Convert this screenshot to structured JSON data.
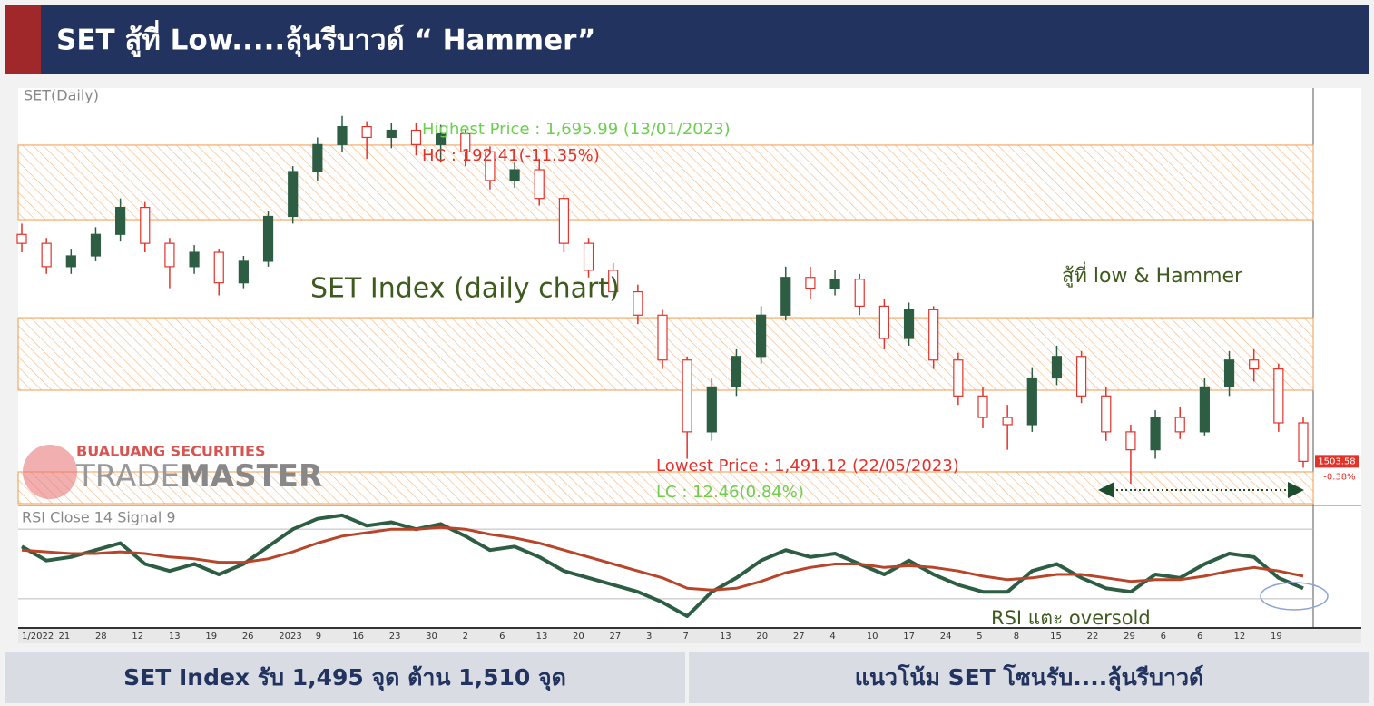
{
  "header": {
    "title": "SET สู้ที่ Low.....ลุ้นรีบาวด์ “ Hammer”"
  },
  "chart_data": {
    "type": "candlestick",
    "title": "SET(Daily)",
    "open": [
      1630,
      1625,
      1612,
      1618,
      1630,
      1645,
      1625,
      1612,
      1620,
      1603,
      1615,
      1640,
      1665,
      1680,
      1690,
      1684,
      1688,
      1680,
      1686,
      1676,
      1660,
      1666,
      1650,
      1625,
      1610,
      1598,
      1585,
      1560,
      1520,
      1545,
      1562,
      1585,
      1606,
      1600,
      1605,
      1590,
      1572,
      1588,
      1560,
      1540,
      1528,
      1524,
      1550,
      1562,
      1540,
      1520,
      1510,
      1528,
      1520,
      1545,
      1560,
      1555,
      1525
    ],
    "high": [
      1636,
      1628,
      1622,
      1634,
      1650,
      1648,
      1628,
      1624,
      1622,
      1618,
      1643,
      1668,
      1684,
      1695.99,
      1693,
      1692,
      1692,
      1691,
      1688,
      1679,
      1670,
      1672,
      1652,
      1628,
      1614,
      1602,
      1588,
      1562,
      1550,
      1566,
      1590,
      1612,
      1612,
      1610,
      1608,
      1594,
      1592,
      1590,
      1564,
      1545,
      1535,
      1556,
      1568,
      1565,
      1545,
      1524,
      1532,
      1534,
      1550,
      1565,
      1566,
      1558,
      1528
    ],
    "low": [
      1620,
      1608,
      1608,
      1615,
      1626,
      1620,
      1600,
      1608,
      1596,
      1600,
      1612,
      1636,
      1660,
      1676,
      1672,
      1678,
      1674,
      1670,
      1668,
      1655,
      1656,
      1646,
      1620,
      1606,
      1594,
      1580,
      1555,
      1505,
      1515,
      1540,
      1558,
      1582,
      1594,
      1596,
      1585,
      1566,
      1568,
      1555,
      1535,
      1522,
      1510,
      1520,
      1546,
      1536,
      1515,
      1491.12,
      1505,
      1516,
      1518,
      1540,
      1548,
      1520,
      1500
    ],
    "close": [
      1625,
      1612,
      1618,
      1630,
      1645,
      1625,
      1612,
      1620,
      1603,
      1615,
      1640,
      1665,
      1680,
      1690,
      1684,
      1688,
      1680,
      1686,
      1676,
      1660,
      1666,
      1650,
      1625,
      1610,
      1598,
      1585,
      1560,
      1520,
      1545,
      1562,
      1585,
      1606,
      1600,
      1605,
      1590,
      1572,
      1588,
      1560,
      1540,
      1528,
      1524,
      1550,
      1562,
      1540,
      1520,
      1510,
      1528,
      1520,
      1545,
      1560,
      1555,
      1525,
      1503.58
    ],
    "up_color": "#2d5e44",
    "down_color": "#e2332b",
    "ylim": [
      1480,
      1710
    ],
    "zones": [
      [
        1638.2,
        1679.7
      ],
      [
        1543.2,
        1583.6
      ],
      [
        1480,
        1497.7
      ]
    ],
    "zone_color": "#f29a4a",
    "change": "-0.38%",
    "x_labels": [
      "1/2022",
      "21",
      "28",
      "12",
      "13",
      "19",
      "26",
      "2023",
      "9",
      "16",
      "23",
      "30",
      "2",
      "6",
      "13",
      "20",
      "27",
      "3",
      "7",
      "13",
      "20",
      "27",
      "4",
      "10",
      "17",
      "24",
      "5",
      "8",
      "15",
      "22",
      "29",
      "6",
      "6",
      "12",
      "19"
    ],
    "annotations": {
      "highest": "Highest Price : 1,695.99 (13/01/2023)",
      "hc": "HC : 192.41(-11.35%)",
      "label": "SET Index (daily chart)",
      "note": "สู้ที่ low & Hammer",
      "lowest": "Lowest Price : 1,491.12 (22/05/2023)",
      "lc": "LC : 12.46(0.84%)"
    }
  },
  "rsi": {
    "type": "line",
    "title": "RSI Close 14 Signal 9",
    "ylim": [
      20,
      80
    ],
    "yticks": [
      30,
      50,
      70
    ],
    "series": [
      {
        "color": "#2d5e44",
        "values": [
          60,
          52,
          54,
          58,
          62,
          50,
          46,
          50,
          44,
          50,
          60,
          70,
          76,
          78,
          72,
          74,
          70,
          73,
          66,
          58,
          60,
          54,
          46,
          42,
          38,
          34,
          28,
          20,
          34,
          42,
          52,
          58,
          54,
          56,
          50,
          44,
          52,
          44,
          38,
          34,
          34,
          46,
          50,
          42,
          36,
          34,
          44,
          42,
          50,
          56,
          54,
          42,
          36
        ]
      },
      {
        "color": "#b8452a",
        "values": [
          58,
          57,
          56,
          56,
          57,
          56,
          54,
          53,
          51,
          51,
          53,
          57,
          62,
          66,
          68,
          70,
          70,
          71,
          70,
          67,
          65,
          62,
          58,
          54,
          50,
          46,
          42,
          36,
          35,
          36,
          40,
          45,
          48,
          50,
          50,
          48,
          49,
          48,
          46,
          43,
          41,
          42,
          44,
          44,
          42,
          40,
          41,
          41,
          43,
          46,
          48,
          46,
          43
        ]
      }
    ],
    "note": "RSI แตะ oversold"
  },
  "logo": {
    "company": "BUALUANG SECURITIES",
    "brand1": "TRADE",
    "brand2": "MASTER"
  },
  "footer": {
    "left": "SET Index รับ 1,495 จุด ต้าน 1,510 จุด",
    "right": "แนวโน้ม SET โซนรับ....ลุ้นรีบาวด์"
  }
}
